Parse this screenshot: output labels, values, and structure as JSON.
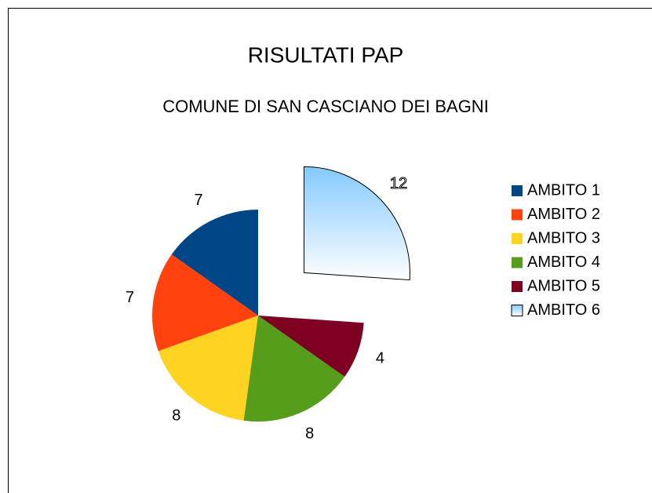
{
  "chart_data": {
    "type": "pie",
    "title": "RISULTATI PAP",
    "subtitle": "COMUNE DI SAN CASCIANO DEI BAGNI",
    "categories": [
      "AMBITO 1",
      "AMBITO 2",
      "AMBITO 3",
      "AMBITO 4",
      "AMBITO 5",
      "AMBITO 6"
    ],
    "values": [
      7,
      7,
      8,
      8,
      4,
      12
    ],
    "colors": [
      "#004586",
      "#ff420e",
      "#ffd320",
      "#579d1c",
      "#7e0021",
      "#83caff"
    ],
    "legend": "right"
  }
}
